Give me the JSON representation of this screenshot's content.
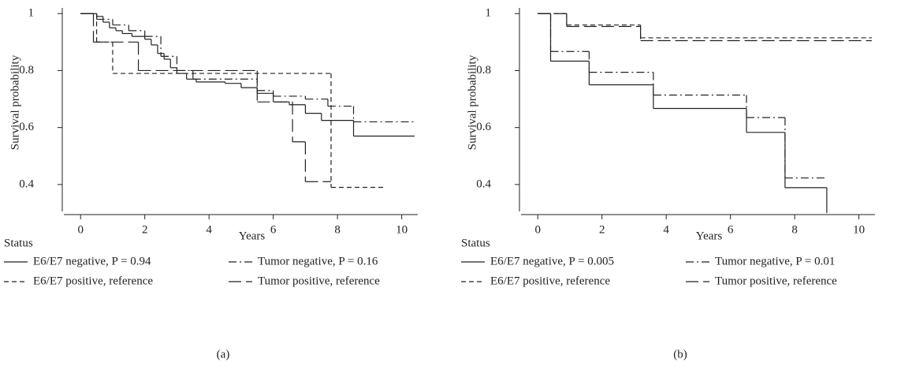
{
  "chart_data": [
    {
      "type": "step",
      "caption": "(a)",
      "xlabel": "Years",
      "ylabel": "Survival probability",
      "legend_title": "Status",
      "xlim": [
        -0.57,
        10.5
      ],
      "ylim": [
        0.3,
        1.02
      ],
      "xticks": [
        0,
        2,
        4,
        6,
        8,
        10
      ],
      "yticks": [
        0.4,
        0.6,
        0.8,
        1
      ],
      "series": [
        {
          "name": "E6/E7 negative, P = 0.94",
          "color": "#222222",
          "dash": "solid",
          "x": [
            0,
            0.5,
            0.7,
            0.9,
            1.1,
            1.3,
            1.6,
            2.0,
            2.2,
            2.4,
            2.6,
            2.8,
            3.0,
            3.3,
            3.6,
            4.5,
            5.0,
            5.5,
            6.0,
            6.5,
            7.0,
            7.5,
            8.5,
            10.4
          ],
          "values": [
            1,
            0.99,
            0.97,
            0.95,
            0.94,
            0.93,
            0.92,
            0.91,
            0.89,
            0.86,
            0.84,
            0.81,
            0.79,
            0.77,
            0.76,
            0.755,
            0.74,
            0.72,
            0.69,
            0.68,
            0.65,
            0.625,
            0.57,
            0.57
          ]
        },
        {
          "name": "E6/E7 positive, reference",
          "color": "#222222",
          "dash": "short",
          "x": [
            0,
            0.5,
            1.0,
            7.8,
            9.5
          ],
          "values": [
            1,
            0.9,
            0.79,
            0.39,
            0.39
          ]
        },
        {
          "name": "Tumor negative, P = 0.16",
          "color": "#222222",
          "dash": "dashdot",
          "x": [
            0,
            0.5,
            1.0,
            1.5,
            2.0,
            2.5,
            3.0,
            3.5,
            5.5,
            6.0,
            7.0,
            7.7,
            8.5,
            10.4
          ],
          "values": [
            1,
            0.98,
            0.96,
            0.94,
            0.92,
            0.85,
            0.8,
            0.77,
            0.73,
            0.71,
            0.7,
            0.675,
            0.62,
            0.62
          ]
        },
        {
          "name": "Tumor positive, reference",
          "color": "#222222",
          "dash": "long",
          "x": [
            0,
            0.4,
            1.8,
            5.5,
            6.6,
            7.0,
            7.8
          ],
          "values": [
            1,
            0.9,
            0.8,
            0.69,
            0.55,
            0.41,
            0.41
          ]
        }
      ]
    },
    {
      "type": "step",
      "caption": "(b)",
      "xlabel": "Years",
      "ylabel": "Survival probability",
      "legend_title": "Status",
      "xlim": [
        -0.57,
        10.5
      ],
      "ylim": [
        0.3,
        1.02
      ],
      "xticks": [
        0,
        2,
        4,
        6,
        8,
        10
      ],
      "yticks": [
        0.4,
        0.6,
        0.8,
        1
      ],
      "series": [
        {
          "name": "E6/E7 negative, P = 0.005",
          "color": "#222222",
          "dash": "solid",
          "x": [
            0,
            0.4,
            1.6,
            3.6,
            6.5,
            7.7,
            9.0
          ],
          "values": [
            1,
            0.833,
            0.75,
            0.667,
            0.583,
            0.389,
            0
          ]
        },
        {
          "name": "E6/E7 positive, reference",
          "color": "#222222",
          "dash": "short",
          "x": [
            0,
            0.9,
            3.2,
            10.4
          ],
          "values": [
            1,
            0.96,
            0.915,
            0.915
          ]
        },
        {
          "name": "Tumor negative, P = 0.01",
          "color": "#222222",
          "dash": "dashdot",
          "x": [
            0,
            0.4,
            1.6,
            3.6,
            6.5,
            7.7,
            9.0
          ],
          "values": [
            1,
            0.867,
            0.794,
            0.714,
            0.635,
            0.423,
            0.423
          ]
        },
        {
          "name": "Tumor positive, reference",
          "color": "#222222",
          "dash": "long",
          "x": [
            0,
            0.9,
            3.2,
            10.4
          ],
          "values": [
            1,
            0.955,
            0.905,
            0.905
          ]
        }
      ]
    }
  ]
}
